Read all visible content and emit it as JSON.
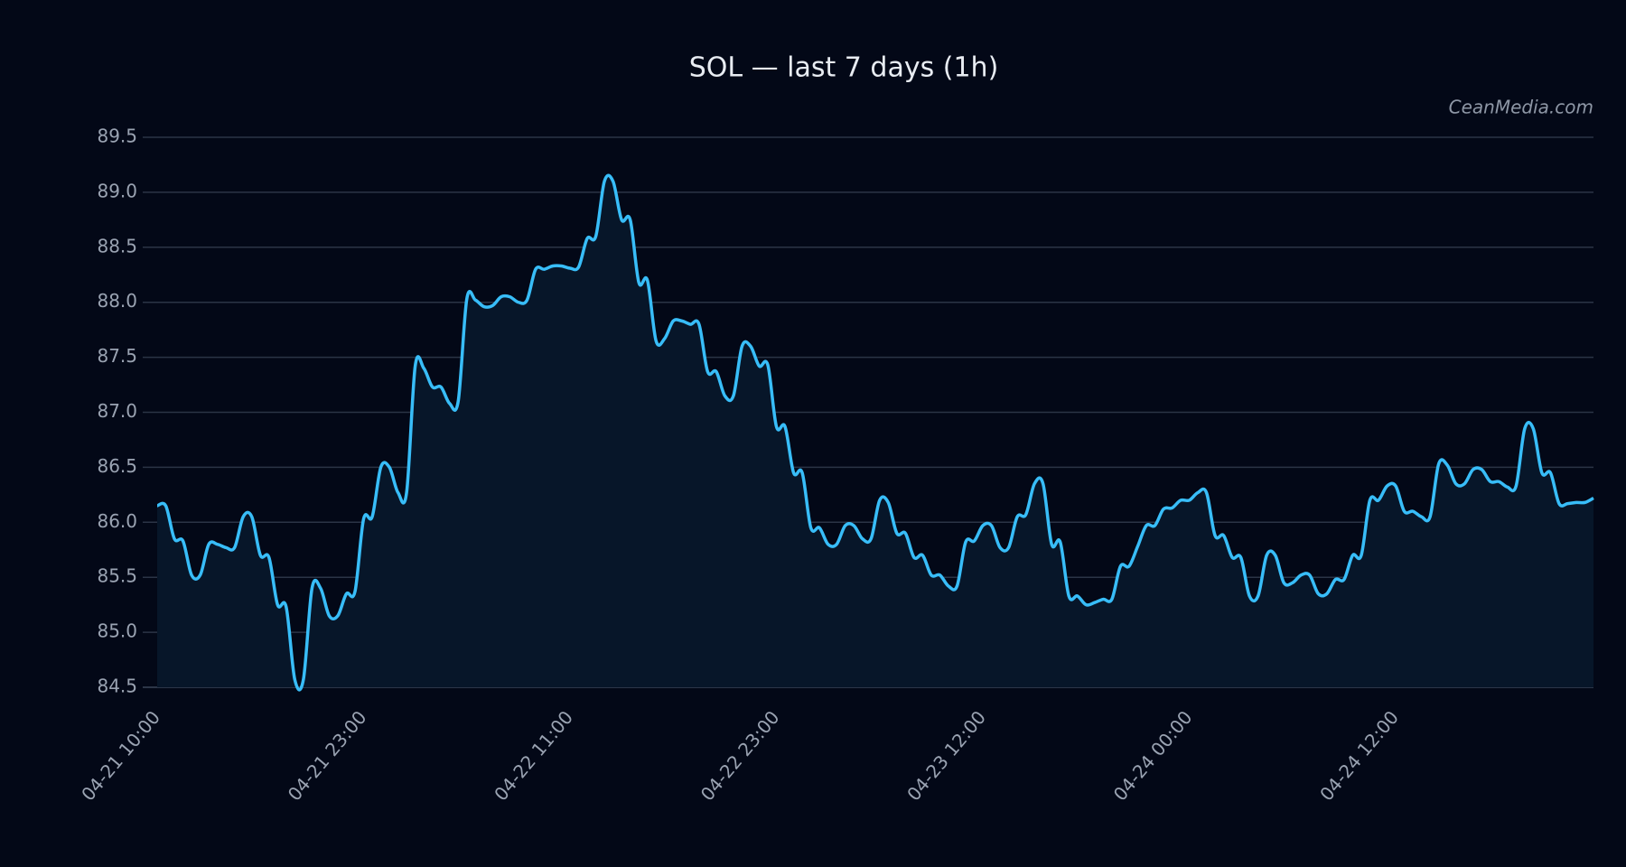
{
  "chart_data": {
    "type": "line",
    "title": "SOL — last 7 days (1h)",
    "watermark": "CeanMedia.com",
    "categories": [
      "04-21 10:00",
      null,
      null,
      null,
      null,
      null,
      null,
      null,
      null,
      null,
      null,
      null,
      null,
      null,
      null,
      null,
      null,
      null,
      null,
      null,
      null,
      null,
      null,
      null,
      "04-21 23:00",
      null,
      null,
      null,
      null,
      null,
      null,
      null,
      null,
      null,
      null,
      null,
      null,
      null,
      null,
      null,
      null,
      null,
      null,
      null,
      null,
      null,
      null,
      null,
      "04-22 11:00",
      null,
      null,
      null,
      null,
      null,
      null,
      null,
      null,
      null,
      null,
      null,
      null,
      null,
      null,
      null,
      null,
      null,
      null,
      null,
      null,
      null,
      null,
      null,
      "04-22 23:00",
      null,
      null,
      null,
      null,
      null,
      null,
      null,
      null,
      null,
      null,
      null,
      null,
      null,
      null,
      null,
      null,
      null,
      null,
      null,
      null,
      null,
      null,
      null,
      "04-23 12:00",
      null,
      null,
      null,
      null,
      null,
      null,
      null,
      null,
      null,
      null,
      null,
      null,
      null,
      null,
      null,
      null,
      null,
      null,
      null,
      null,
      null,
      null,
      null,
      "04-24 00:00",
      null,
      null,
      null,
      null,
      null,
      null,
      null,
      null,
      null,
      null,
      null,
      null,
      null,
      null,
      null,
      null,
      null,
      null,
      null,
      null,
      null,
      null,
      null,
      "04-24 12:00",
      null,
      null,
      null,
      null,
      null,
      null,
      null,
      null,
      null,
      null,
      null,
      null,
      null,
      null,
      null,
      null,
      null,
      null,
      null,
      null,
      null,
      null,
      null
    ],
    "series": [
      {
        "name": "SOL",
        "color": "#38bdf8",
        "area_color": "#071629",
        "values": [
          86.15,
          86.15,
          85.85,
          85.83,
          85.52,
          85.52,
          85.8,
          85.8,
          85.77,
          85.77,
          86.05,
          86.05,
          85.7,
          85.68,
          85.25,
          85.23,
          84.57,
          84.57,
          85.4,
          85.4,
          85.15,
          85.15,
          85.35,
          85.37,
          86.03,
          86.05,
          86.5,
          86.5,
          86.27,
          86.27,
          87.42,
          87.4,
          87.23,
          87.23,
          87.08,
          87.1,
          88.03,
          88.02,
          87.96,
          87.97,
          88.05,
          88.05,
          88.0,
          88.02,
          88.3,
          88.3,
          88.33,
          88.33,
          88.31,
          88.32,
          88.58,
          88.6,
          89.1,
          89.1,
          88.75,
          88.75,
          88.18,
          88.2,
          87.65,
          87.67,
          87.83,
          87.83,
          87.8,
          87.8,
          87.37,
          87.37,
          87.15,
          87.15,
          87.6,
          87.6,
          87.42,
          87.43,
          86.87,
          86.87,
          86.45,
          86.45,
          85.95,
          85.95,
          85.8,
          85.8,
          85.97,
          85.97,
          85.85,
          85.85,
          86.2,
          86.18,
          85.9,
          85.9,
          85.68,
          85.7,
          85.52,
          85.52,
          85.42,
          85.42,
          85.82,
          85.83,
          85.97,
          85.97,
          85.77,
          85.77,
          86.05,
          86.07,
          86.35,
          86.35,
          85.8,
          85.82,
          85.33,
          85.33,
          85.25,
          85.27,
          85.3,
          85.3,
          85.6,
          85.6,
          85.78,
          85.97,
          85.97,
          86.12,
          86.13,
          86.2,
          86.2,
          86.27,
          86.27,
          85.88,
          85.88,
          85.68,
          85.68,
          85.33,
          85.33,
          85.7,
          85.7,
          85.45,
          85.45,
          85.52,
          85.52,
          85.35,
          85.35,
          85.48,
          85.48,
          85.7,
          85.7,
          86.2,
          86.2,
          86.33,
          86.33,
          86.1,
          86.1,
          86.05,
          86.05,
          86.53,
          86.52,
          86.35,
          86.35,
          86.48,
          86.48,
          86.37,
          86.37,
          86.32,
          86.33,
          86.85,
          86.85,
          86.45,
          86.45,
          86.17,
          86.17,
          86.18,
          86.18,
          86.22
        ]
      }
    ],
    "ylim": [
      84.5,
      89.5
    ],
    "yticks": [
      84.5,
      {
        "value": 85,
        "label": "85.0"
      },
      85.5,
      {
        "value": 86,
        "label": "86.0"
      },
      86.5,
      {
        "value": 87,
        "label": "87.0"
      },
      87.5,
      {
        "value": 88,
        "label": "88.0"
      },
      88.5,
      {
        "value": 89,
        "label": "89.0"
      },
      89.5
    ],
    "grid": true
  }
}
